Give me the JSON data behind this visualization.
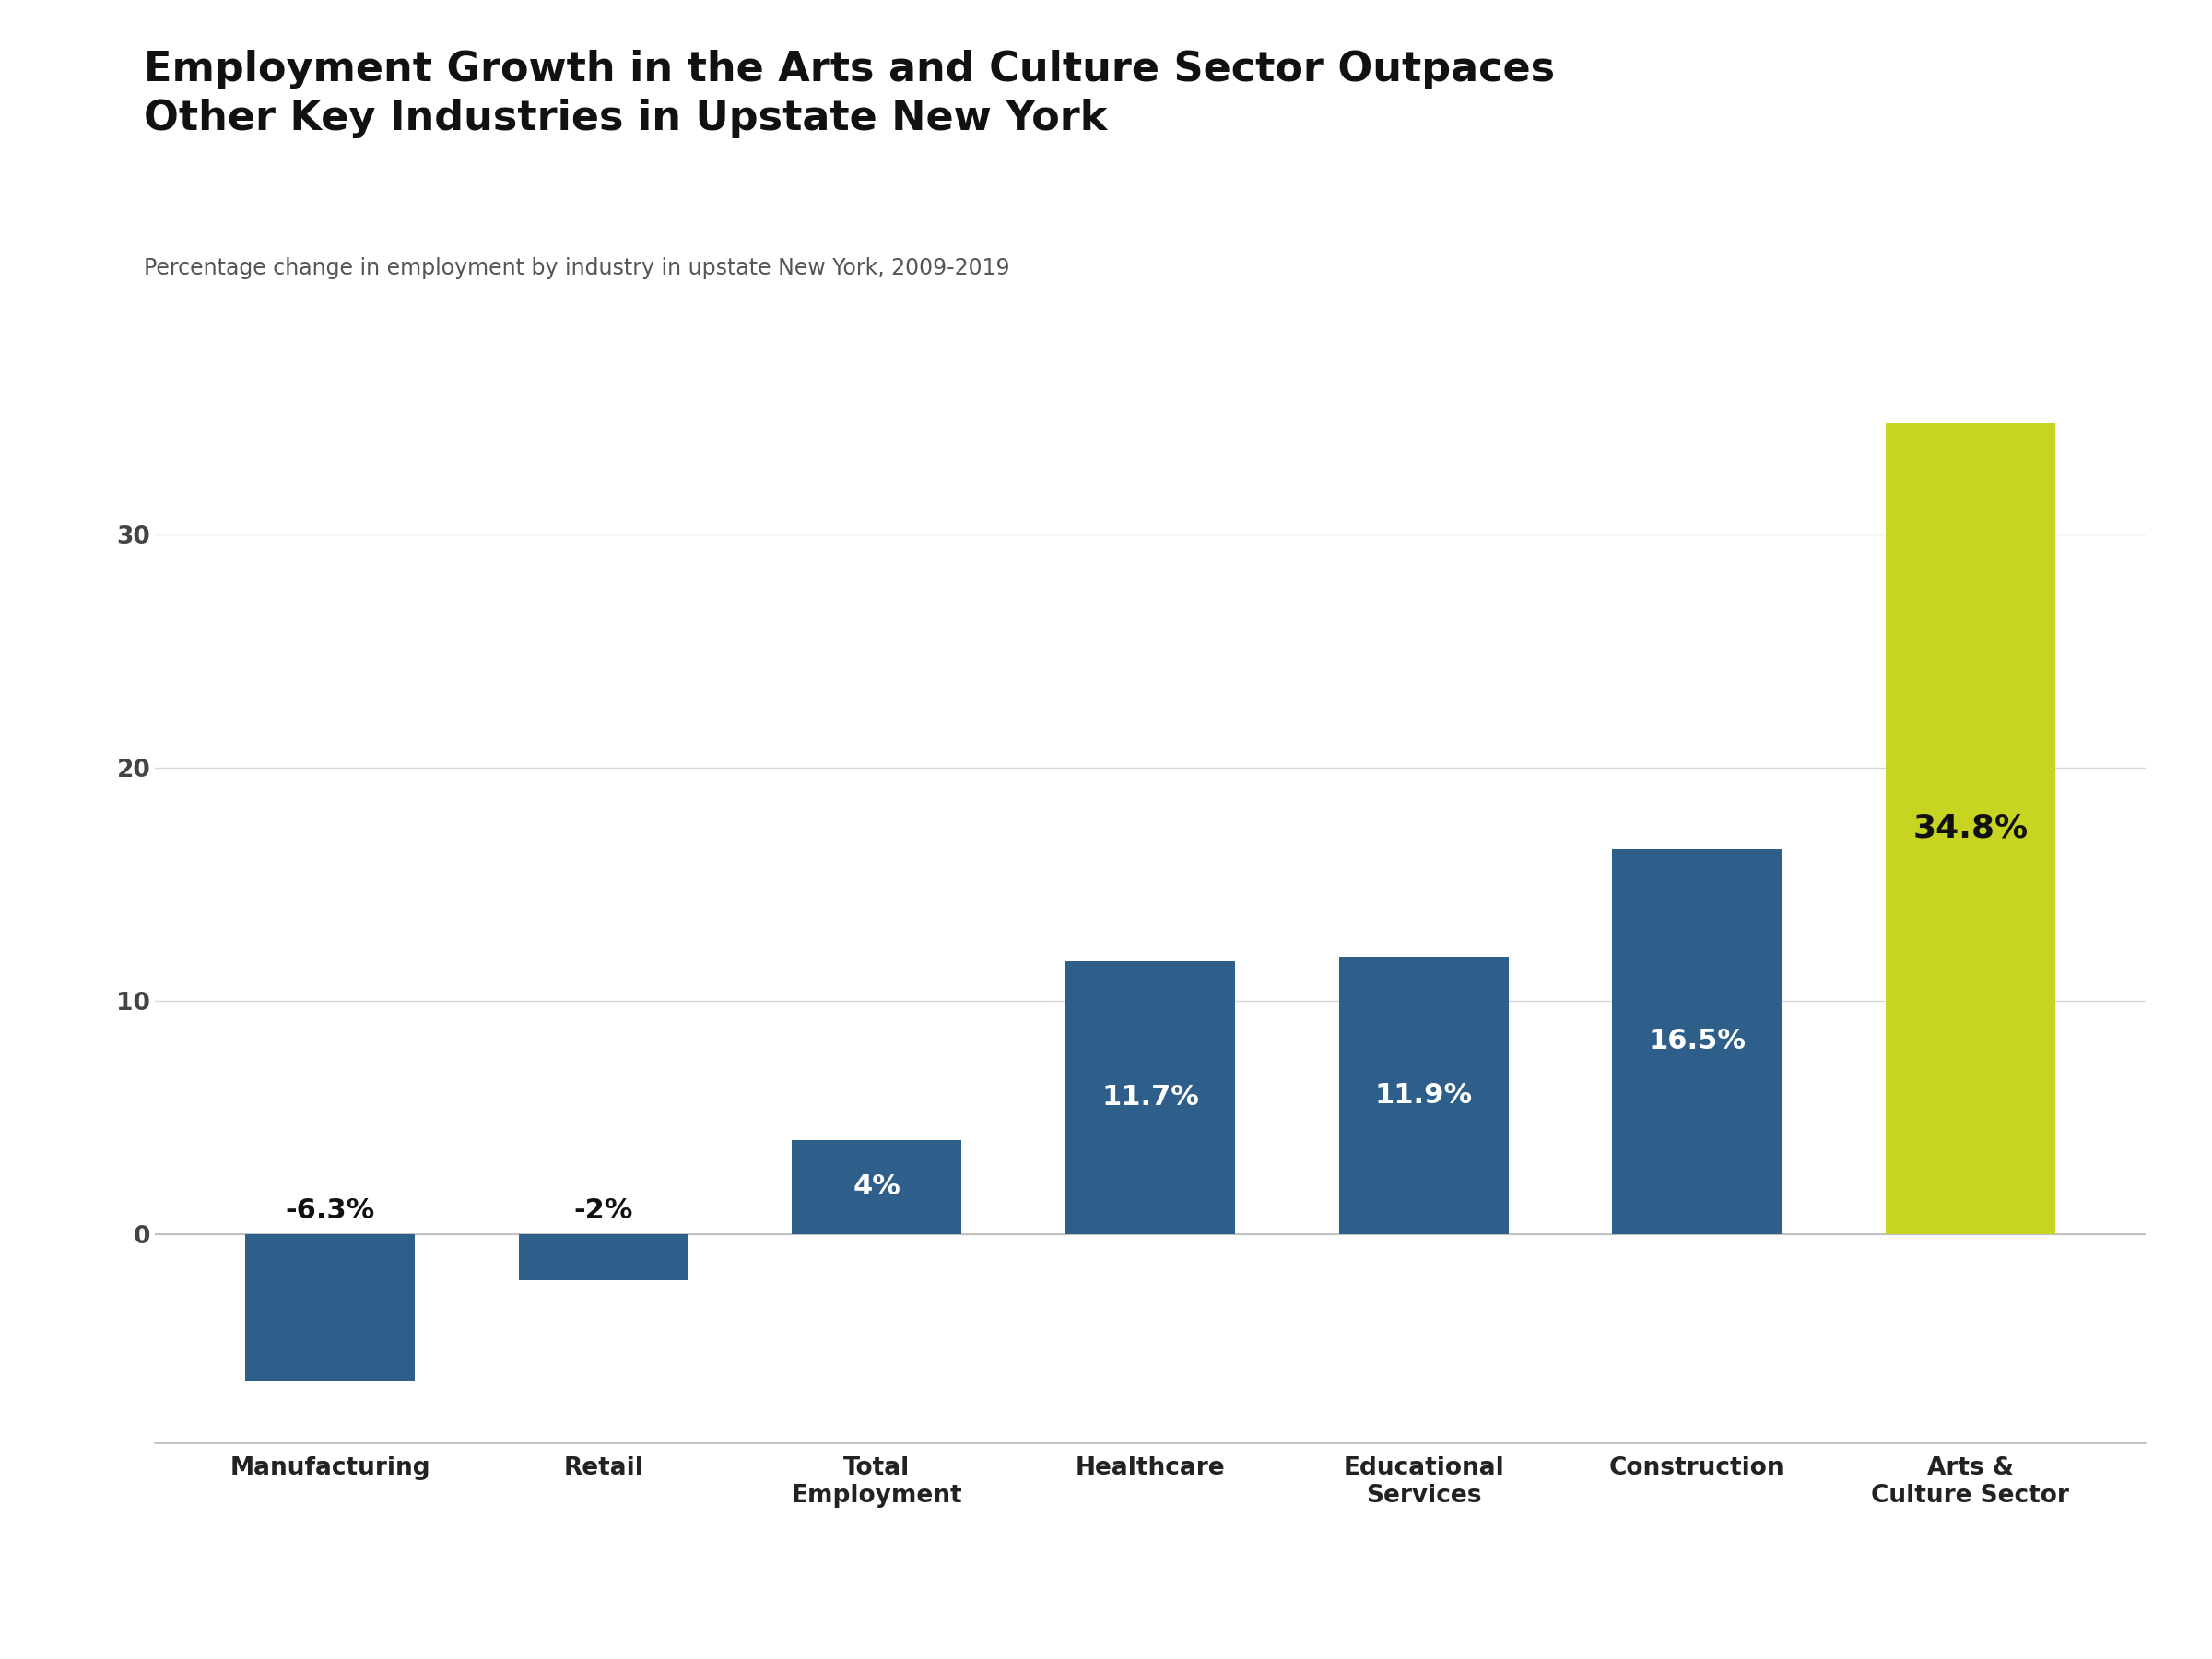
{
  "title": "Employment Growth in the Arts and Culture Sector Outpaces\nOther Key Industries in Upstate New York",
  "subtitle": "Percentage change in employment by industry in upstate New York, 2009-2019",
  "categories": [
    "Manufacturing",
    "Retail",
    "Total\nEmployment",
    "Healthcare",
    "Educational\nServices",
    "Construction",
    "Arts &\nCulture Sector"
  ],
  "values": [
    -6.3,
    -2.0,
    4.0,
    11.7,
    11.9,
    16.5,
    34.8
  ],
  "labels": [
    "-6.3%",
    "-2%",
    "4%",
    "11.7%",
    "11.9%",
    "16.5%",
    "34.8%"
  ],
  "bar_colors": [
    "#2E5F8A",
    "#2E5F8A",
    "#2E5F8A",
    "#2E5F8A",
    "#2E5F8A",
    "#2E5F8A",
    "#C8D422"
  ],
  "label_text_colors": [
    "#111111",
    "#111111",
    "#ffffff",
    "#ffffff",
    "#ffffff",
    "#ffffff",
    "#111111"
  ],
  "background_color": "#ffffff",
  "title_fontsize": 32,
  "subtitle_fontsize": 17,
  "tick_fontsize": 19,
  "label_fontsize": 22,
  "ylim": [
    -9,
    38
  ],
  "yticks": [
    0,
    10,
    20,
    30
  ],
  "grid_color": "#d8d8d8",
  "axis_color": "#bbbbbb"
}
